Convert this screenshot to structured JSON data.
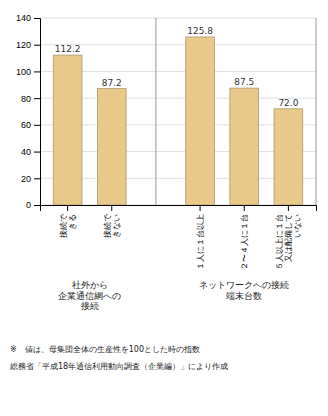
{
  "chart_data": {
    "type": "bar",
    "groups": [
      {
        "label": "社外から\n企業通信網への\n接続",
        "categories": [
          "接続で\nきる",
          "接続で\nきない"
        ],
        "values": [
          112.2,
          87.2
        ],
        "value_labels": [
          "112.2",
          "87.2"
        ]
      },
      {
        "label": "ネットワークへの接続\n端末台数",
        "categories": [
          "１人に１台以上",
          "２〜４人に１台",
          "５人以上に１台\n又は配備して\nいない"
        ],
        "values": [
          125.8,
          87.5,
          72.0
        ],
        "value_labels": [
          "125.8",
          "87.5",
          "72.0"
        ]
      }
    ],
    "color": "#E8C98A",
    "ylim": [
      0,
      140
    ],
    "yticks": [
      0,
      20,
      40,
      60,
      80,
      100,
      120,
      140
    ],
    "grid": true,
    "data_labels": true,
    "annotations": [
      "※　値は、母集団全体の生産性を100とした時の指数",
      "総務省「平成18年通信利用動向調査（企業編）」により作成"
    ]
  }
}
